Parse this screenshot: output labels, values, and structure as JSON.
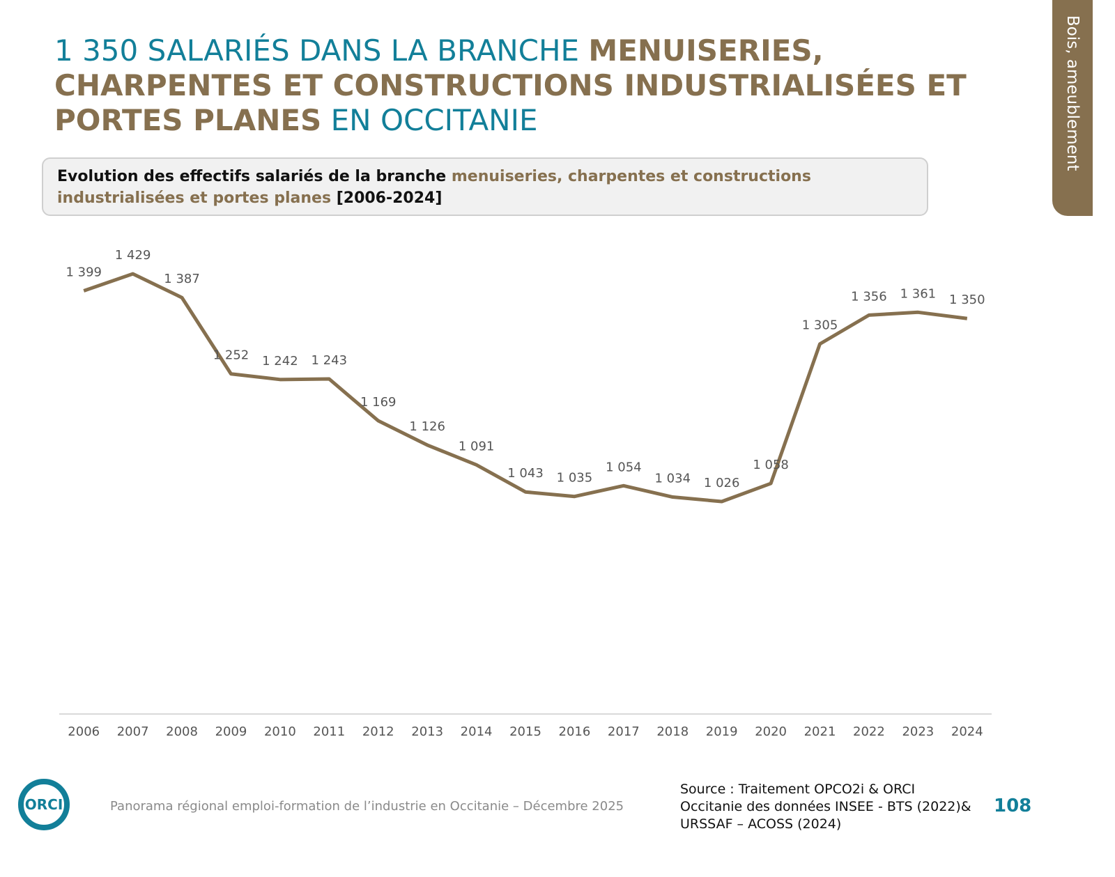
{
  "header": {
    "title": [
      {
        "text": "1 350 SALARIÉS DANS LA BRANCHE ",
        "style": "plain"
      },
      {
        "text": "MENUISERIES, CHARPENTES ET CONSTRUCTIONS INDUSTRIALISÉES ET PORTES PLANES",
        "style": "accent"
      },
      {
        "text": " EN OCCITANIE",
        "style": "plain"
      }
    ]
  },
  "side_tab": "Bois, ameublement",
  "chart_data": {
    "type": "line",
    "title": [
      {
        "text": "Evolution des effectifs salariés de la branche ",
        "style": "plain"
      },
      {
        "text": "menuiseries, charpentes et constructions industrialisées et portes planes",
        "style": "accent"
      },
      {
        "text": " [2006-2024]",
        "style": "plain"
      }
    ],
    "categories": [
      "2006",
      "2007",
      "2008",
      "2009",
      "2010",
      "2011",
      "2012",
      "2013",
      "2014",
      "2015",
      "2016",
      "2017",
      "2018",
      "2019",
      "2020",
      "2021",
      "2022",
      "2023",
      "2024"
    ],
    "values": [
      1399,
      1429,
      1387,
      1252,
      1242,
      1243,
      1169,
      1126,
      1091,
      1043,
      1035,
      1054,
      1034,
      1026,
      1058,
      1305,
      1356,
      1361,
      1350
    ],
    "value_labels": [
      "1 399",
      "1 429",
      "1 387",
      "1 252",
      "1 242",
      "1 243",
      "1 169",
      "1 126",
      "1 091",
      "1 043",
      "1 035",
      "1 054",
      "1 034",
      "1 026",
      "1 058",
      "1 305",
      "1 356",
      "1 361",
      "1 350"
    ],
    "color": "#86704f",
    "ylim": [
      650,
      1550
    ],
    "grid": false
  },
  "footer": {
    "logo": "ORCI",
    "text": "Panorama régional emploi-formation de l’industrie en Occitanie – Décembre 2025",
    "source": [
      "Source : Traitement OPCO2i & ORCI",
      "Occitanie des données  INSEE - BTS (2022)&",
      "URSSAF – ACOSS (2024)"
    ],
    "page": "108"
  }
}
